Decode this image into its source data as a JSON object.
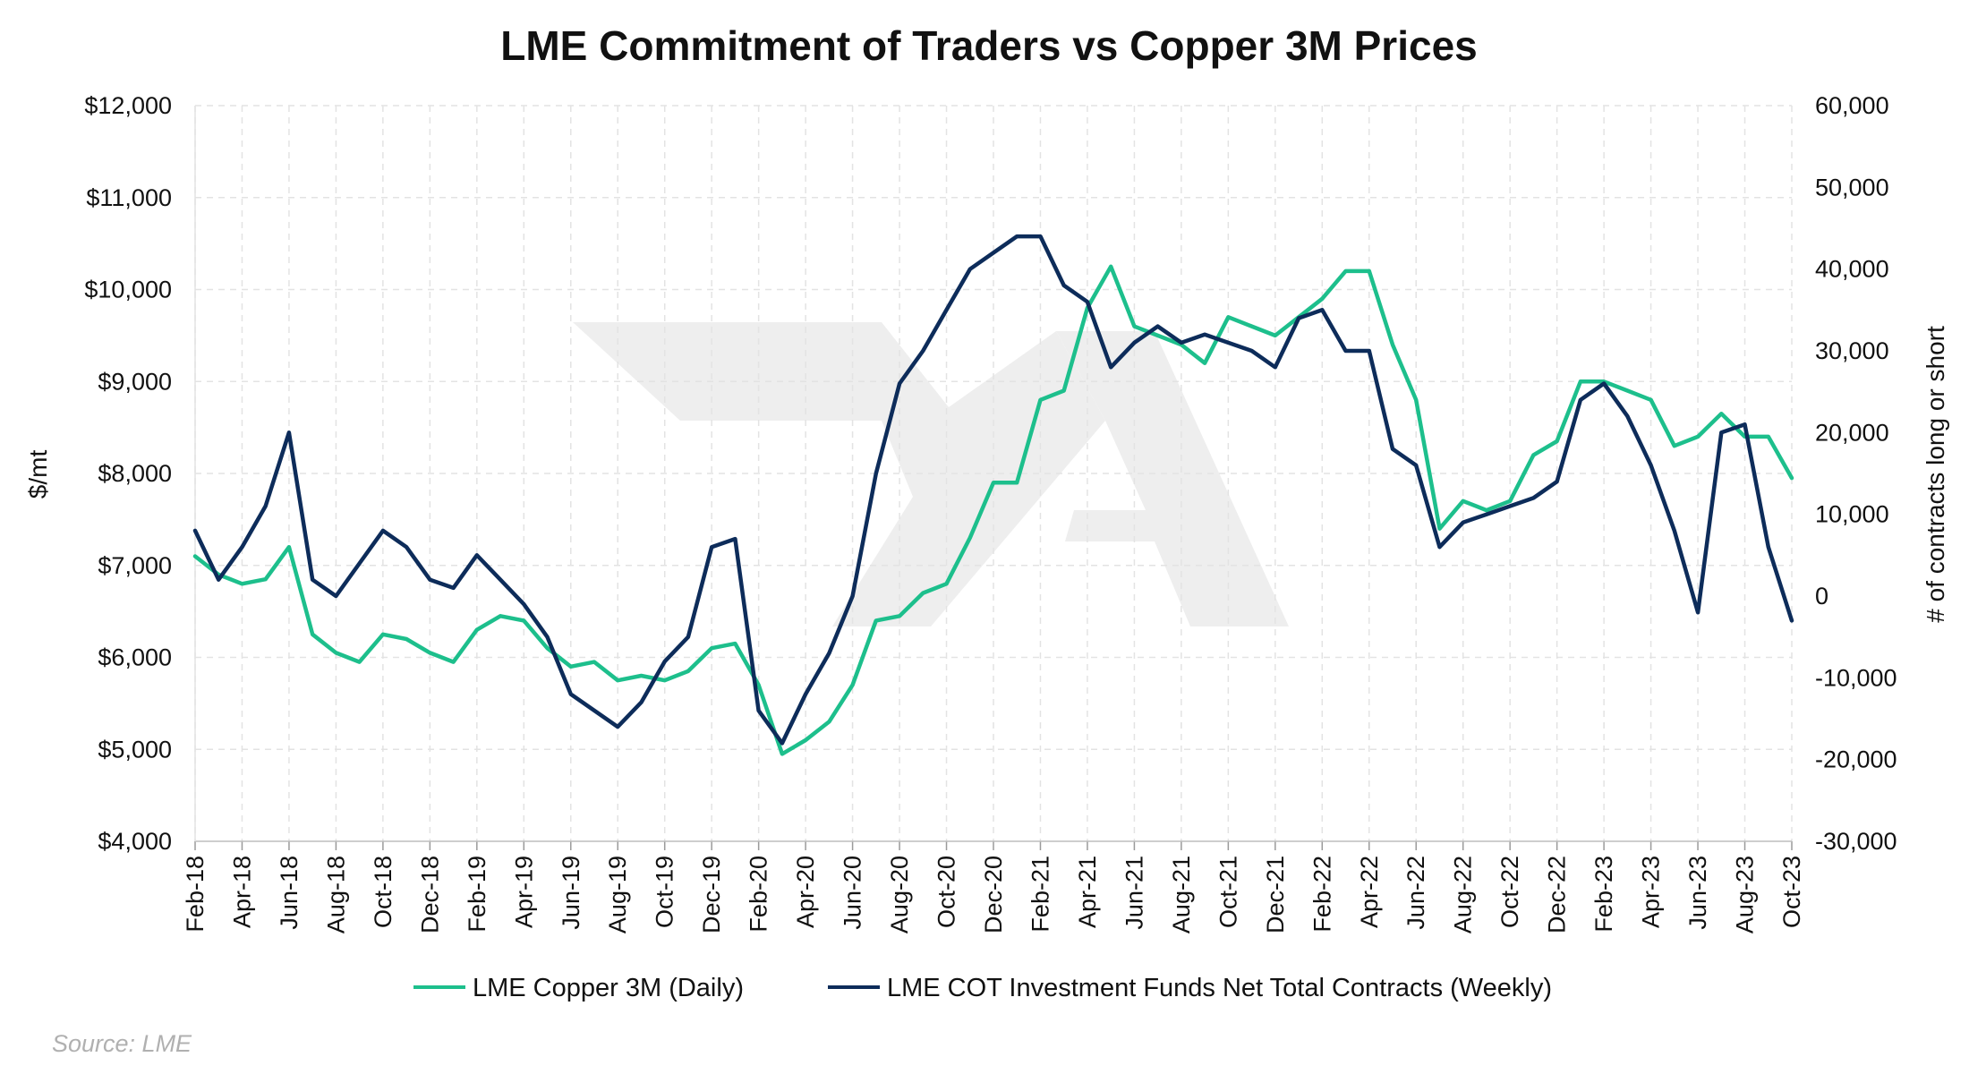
{
  "chart_data": {
    "type": "line",
    "title": "LME Commitment of Traders vs Copper 3M Prices",
    "ylabel": "$/mt",
    "y2label": "# of contracts long or short",
    "ylim": [
      4000,
      12000
    ],
    "y2lim": [
      -30000,
      60000
    ],
    "yticks": [
      "$4,000",
      "$5,000",
      "$6,000",
      "$7,000",
      "$8,000",
      "$9,000",
      "$10,000",
      "$11,000",
      "$12,000"
    ],
    "y2ticks": [
      "-30,000",
      "-20,000",
      "-10,000",
      "0",
      "10,000",
      "20,000",
      "30,000",
      "40,000",
      "50,000",
      "60,000"
    ],
    "xticks": [
      "Feb-18",
      "Apr-18",
      "Jun-18",
      "Aug-18",
      "Oct-18",
      "Dec-18",
      "Feb-19",
      "Apr-19",
      "Jun-19",
      "Aug-19",
      "Oct-19",
      "Dec-19",
      "Feb-20",
      "Apr-20",
      "Jun-20",
      "Aug-20",
      "Oct-20",
      "Dec-20",
      "Feb-21",
      "Apr-21",
      "Jun-21",
      "Aug-21",
      "Oct-21",
      "Dec-21",
      "Feb-22",
      "Apr-22",
      "Jun-22",
      "Aug-22",
      "Oct-22",
      "Dec-22",
      "Feb-23",
      "Apr-23",
      "Jun-23",
      "Aug-23",
      "Oct-23"
    ],
    "grid": true,
    "legend_position": "bottom",
    "x": [
      "2018-02",
      "2018-03",
      "2018-04",
      "2018-05",
      "2018-06",
      "2018-07",
      "2018-08",
      "2018-09",
      "2018-10",
      "2018-11",
      "2018-12",
      "2019-01",
      "2019-02",
      "2019-03",
      "2019-04",
      "2019-05",
      "2019-06",
      "2019-07",
      "2019-08",
      "2019-09",
      "2019-10",
      "2019-11",
      "2019-12",
      "2020-01",
      "2020-02",
      "2020-03",
      "2020-04",
      "2020-05",
      "2020-06",
      "2020-07",
      "2020-08",
      "2020-09",
      "2020-10",
      "2020-11",
      "2020-12",
      "2021-01",
      "2021-02",
      "2021-03",
      "2021-04",
      "2021-05",
      "2021-06",
      "2021-07",
      "2021-08",
      "2021-09",
      "2021-10",
      "2021-11",
      "2021-12",
      "2022-01",
      "2022-02",
      "2022-03",
      "2022-04",
      "2022-05",
      "2022-06",
      "2022-07",
      "2022-08",
      "2022-09",
      "2022-10",
      "2022-11",
      "2022-12",
      "2023-01",
      "2023-02",
      "2023-03",
      "2023-04",
      "2023-05",
      "2023-06",
      "2023-07",
      "2023-08",
      "2023-09",
      "2023-10"
    ],
    "series": [
      {
        "name": "LME Copper 3M (Daily)",
        "axis": "left",
        "color": "#1dbf8c",
        "values": [
          7100,
          6900,
          6800,
          6850,
          7200,
          6250,
          6050,
          5950,
          6250,
          6200,
          6050,
          5950,
          6300,
          6450,
          6400,
          6100,
          5900,
          5950,
          5750,
          5800,
          5750,
          5850,
          6100,
          6150,
          5700,
          4950,
          5100,
          5300,
          5700,
          6400,
          6450,
          6700,
          6800,
          7300,
          7900,
          7900,
          8800,
          8900,
          9800,
          10250,
          9600,
          9500,
          9400,
          9200,
          9700,
          9600,
          9500,
          9700,
          9900,
          10200,
          10200,
          9400,
          8800,
          7400,
          7700,
          7600,
          7700,
          8200,
          8350,
          9000,
          9000,
          8900,
          8800,
          8300,
          8400,
          8650,
          8400,
          8400,
          7950
        ]
      },
      {
        "name": "LME COT Investment Funds Net Total Contracts (Weekly)",
        "axis": "right",
        "color": "#0d2c5a",
        "values": [
          8000,
          2000,
          6000,
          11000,
          20000,
          2000,
          0,
          4000,
          8000,
          6000,
          2000,
          1000,
          5000,
          2000,
          -1000,
          -5000,
          -12000,
          -14000,
          -16000,
          -13000,
          -8000,
          -5000,
          6000,
          7000,
          -14000,
          -18000,
          -12000,
          -7000,
          0,
          15000,
          26000,
          30000,
          35000,
          40000,
          42000,
          44000,
          44000,
          38000,
          36000,
          28000,
          31000,
          33000,
          31000,
          32000,
          31000,
          30000,
          28000,
          34000,
          35000,
          30000,
          30000,
          18000,
          16000,
          6000,
          9000,
          10000,
          11000,
          12000,
          14000,
          24000,
          26000,
          22000,
          16000,
          8000,
          -2000,
          20000,
          21000,
          6000,
          -3000
        ]
      }
    ]
  },
  "source": "Source: LME",
  "watermark": "7A"
}
